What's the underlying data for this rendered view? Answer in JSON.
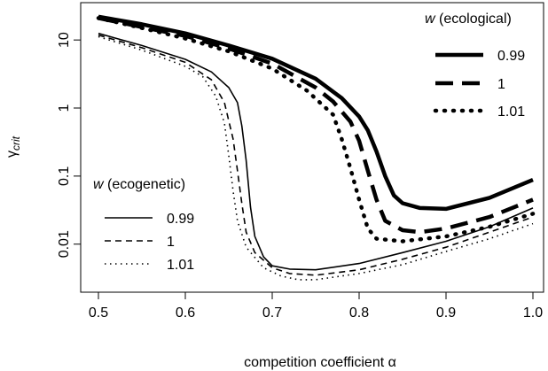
{
  "chart_data": {
    "type": "line",
    "title": "",
    "xlabel": "competition coefficient α",
    "ylabel": "γcrit",
    "ylabel_main": "γ",
    "ylabel_sub": "crit",
    "xlim": [
      0.5,
      1.0
    ],
    "ylim": [
      0.0025,
      27
    ],
    "y_scale": "log",
    "x_ticks": [
      {
        "value": 0.5,
        "label": "0.5"
      },
      {
        "value": 0.6,
        "label": "0.6"
      },
      {
        "value": 0.7,
        "label": "0.7"
      },
      {
        "value": 0.8,
        "label": "0.8"
      },
      {
        "value": 0.9,
        "label": "0.9"
      },
      {
        "value": 1.0,
        "label": "1.0"
      }
    ],
    "y_ticks": [
      {
        "value": 10,
        "label": "10"
      },
      {
        "value": 1,
        "label": "1"
      },
      {
        "value": 0.1,
        "label": "0.1"
      },
      {
        "value": 0.01,
        "label": "0.01"
      }
    ],
    "grid": false,
    "legends": [
      {
        "title_symbol": "w",
        "title_text": " (ecological)",
        "placement": "top-right",
        "entries": [
          {
            "label": "0.99",
            "series": "eco_099"
          },
          {
            "label": "1",
            "series": "eco_1"
          },
          {
            "label": "1.01",
            "series": "eco_101"
          }
        ]
      },
      {
        "title_symbol": "w",
        "title_text": " (ecogenetic)",
        "placement": "bottom-left",
        "entries": [
          {
            "label": "0.99",
            "series": "gen_099"
          },
          {
            "label": "1",
            "series": "gen_1"
          },
          {
            "label": "1.01",
            "series": "gen_101"
          }
        ]
      }
    ],
    "series": [
      {
        "id": "eco_099",
        "group": "ecological",
        "name": "0.99",
        "stroke": "#000000",
        "width": 4.5,
        "dash": "",
        "x": [
          0.5,
          0.55,
          0.6,
          0.65,
          0.7,
          0.75,
          0.78,
          0.8,
          0.81,
          0.82,
          0.83,
          0.84,
          0.85,
          0.87,
          0.9,
          0.95,
          1.0
        ],
        "y": [
          22,
          17,
          12.5,
          8.3,
          5.3,
          2.7,
          1.4,
          0.75,
          0.47,
          0.23,
          0.1,
          0.052,
          0.04,
          0.034,
          0.033,
          0.048,
          0.088
        ]
      },
      {
        "id": "eco_1",
        "group": "ecological",
        "name": "1",
        "stroke": "#000000",
        "width": 4.5,
        "dash": "20 10",
        "x": [
          0.5,
          0.55,
          0.6,
          0.65,
          0.7,
          0.75,
          0.77,
          0.79,
          0.8,
          0.81,
          0.82,
          0.83,
          0.85,
          0.87,
          0.9,
          0.95,
          1.0
        ],
        "y": [
          21,
          15.5,
          11.5,
          7.5,
          4.5,
          2.0,
          1.25,
          0.63,
          0.33,
          0.12,
          0.045,
          0.022,
          0.016,
          0.015,
          0.017,
          0.025,
          0.045
        ]
      },
      {
        "id": "eco_101",
        "group": "ecological",
        "name": "1.01",
        "stroke": "#000000",
        "width": 4.5,
        "dash": "1 9",
        "x": [
          0.5,
          0.55,
          0.6,
          0.65,
          0.7,
          0.74,
          0.77,
          0.78,
          0.79,
          0.8,
          0.81,
          0.82,
          0.85,
          0.9,
          0.95,
          1.0
        ],
        "y": [
          21,
          15,
          10.5,
          6.8,
          3.8,
          1.8,
          0.8,
          0.35,
          0.13,
          0.045,
          0.017,
          0.012,
          0.011,
          0.013,
          0.018,
          0.028
        ]
      },
      {
        "id": "gen_099",
        "group": "ecogenetic",
        "name": "0.99",
        "stroke": "#000000",
        "width": 1.6,
        "dash": "",
        "x": [
          0.5,
          0.55,
          0.6,
          0.63,
          0.65,
          0.66,
          0.665,
          0.67,
          0.675,
          0.68,
          0.69,
          0.7,
          0.72,
          0.75,
          0.8,
          0.85,
          0.9,
          0.95,
          1.0
        ],
        "y": [
          12.5,
          8.3,
          5.2,
          3.4,
          2.0,
          1.2,
          0.55,
          0.17,
          0.035,
          0.013,
          0.0065,
          0.0048,
          0.0043,
          0.0042,
          0.0052,
          0.0075,
          0.011,
          0.018,
          0.034
        ]
      },
      {
        "id": "gen_1",
        "group": "ecogenetic",
        "name": "1",
        "stroke": "#000000",
        "width": 1.6,
        "dash": "7 5",
        "x": [
          0.5,
          0.55,
          0.6,
          0.63,
          0.645,
          0.655,
          0.66,
          0.665,
          0.67,
          0.68,
          0.7,
          0.72,
          0.75,
          0.8,
          0.85,
          0.9,
          0.95,
          1.0
        ],
        "y": [
          11.8,
          7.7,
          4.7,
          2.6,
          1.2,
          0.35,
          0.12,
          0.04,
          0.015,
          0.0075,
          0.0045,
          0.0037,
          0.0035,
          0.0042,
          0.006,
          0.009,
          0.015,
          0.025
        ]
      },
      {
        "id": "gen_101",
        "group": "ecogenetic",
        "name": "1.01",
        "stroke": "#000000",
        "width": 1.6,
        "dash": "1.5 4.5",
        "x": [
          0.5,
          0.55,
          0.6,
          0.62,
          0.635,
          0.645,
          0.65,
          0.655,
          0.66,
          0.67,
          0.69,
          0.71,
          0.73,
          0.75,
          0.8,
          0.85,
          0.9,
          0.95,
          1.0
        ],
        "y": [
          11.2,
          7.1,
          4.1,
          2.9,
          1.5,
          0.6,
          0.2,
          0.06,
          0.022,
          0.009,
          0.0045,
          0.0034,
          0.003,
          0.003,
          0.0037,
          0.005,
          0.0078,
          0.012,
          0.02
        ]
      }
    ]
  }
}
